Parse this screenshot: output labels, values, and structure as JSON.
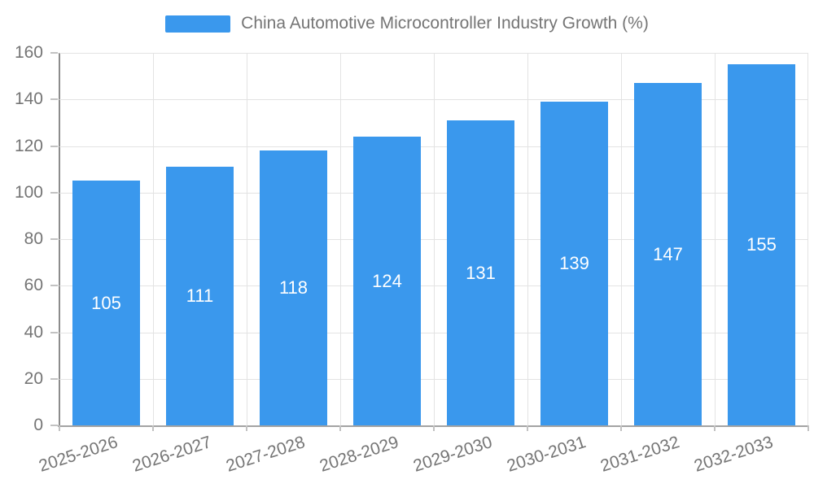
{
  "chart_data": {
    "type": "bar",
    "title": "China Automotive Microcontroller Industry Growth (%)",
    "series_name": "China Automotive Microcontroller Industry Growth (%)",
    "categories": [
      "2025-2026",
      "2026-2027",
      "2027-2028",
      "2028-2029",
      "2029-2030",
      "2030-2031",
      "2031-2032",
      "2032-2033"
    ],
    "values": [
      105,
      111,
      118,
      124,
      131,
      139,
      147,
      155
    ],
    "xlabel": "",
    "ylabel": "",
    "ylim": [
      0,
      160
    ],
    "ytick_step": 20,
    "yticks": [
      0,
      20,
      40,
      60,
      80,
      100,
      120,
      140,
      160
    ],
    "grid": "on",
    "legend_position": "top-center",
    "value_label_position": "inside-center",
    "xlabel_rotation_deg": -18,
    "colors": {
      "bar": "#3A98ED",
      "grid": "#E3E3E3",
      "axis_y": "#8C8C8C",
      "axis_x": "#A3A3A3",
      "tick": "#C2C2C2",
      "text": "#757575",
      "value_label": "#FFFFFF",
      "background": "#FFFFFF"
    }
  }
}
